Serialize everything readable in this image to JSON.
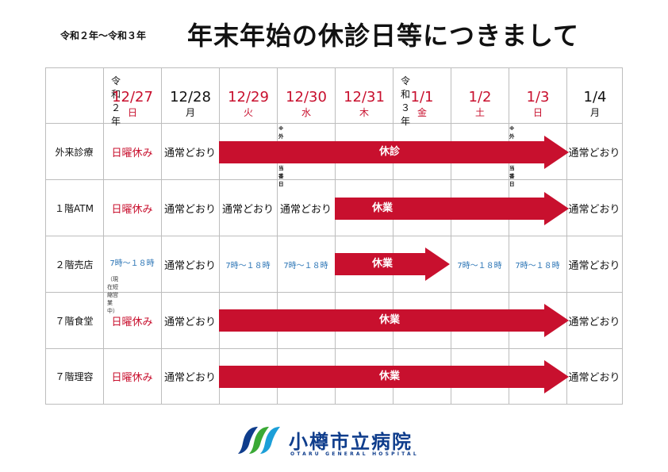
{
  "header": {
    "era_range": "令和２年〜令和３年",
    "title": "年末年始の休診日等につきまして"
  },
  "columns": [
    {
      "era": "令和２年",
      "date": "12/27",
      "dow": "日",
      "red": true
    },
    {
      "era": "",
      "date": "12/28",
      "dow": "月",
      "red": false
    },
    {
      "era": "",
      "date": "12/29",
      "dow": "火",
      "red": true
    },
    {
      "era": "",
      "date": "12/30",
      "dow": "水",
      "red": true
    },
    {
      "era": "",
      "date": "12/31",
      "dow": "木",
      "red": true
    },
    {
      "era": "令和３年",
      "date": "1/1",
      "dow": "金",
      "red": true
    },
    {
      "era": "",
      "date": "1/2",
      "dow": "土",
      "red": true
    },
    {
      "era": "",
      "date": "1/3",
      "dow": "日",
      "red": true
    },
    {
      "era": "",
      "date": "1/4",
      "dow": "月",
      "red": false
    }
  ],
  "notes": {
    "surgery_duty_1230": "※外科救急当番日",
    "surgery_duty_0103": "※外科救急当番日"
  },
  "rows": [
    {
      "label": "外来診療",
      "c1227": "日曜休み",
      "c1228": "通常どおり",
      "closed": "休診",
      "c0104": "通常どおり"
    },
    {
      "label": "１階ATM",
      "c1227": "日曜休み",
      "c1228": "通常どおり",
      "c1229": "通常どおり",
      "c1230": "通常どおり",
      "closed": "休業",
      "c0104": "通常どおり"
    },
    {
      "label": "２階売店",
      "c1227": "7時〜１８時",
      "c1227_sub": "（現在短縮営業中）",
      "c1228": "通常どおり",
      "c1229": "7時〜１８時",
      "c1230": "7時〜１８時",
      "closed": "休業",
      "c0102": "7時〜１８時",
      "c0103": "7時〜１８時",
      "c0104": "通常どおり"
    },
    {
      "label": "７階食堂",
      "c1227": "日曜休み",
      "c1228": "通常どおり",
      "closed": "休業",
      "c0104": "通常どおり"
    },
    {
      "label": "７階理容",
      "c1227": "日曜休み",
      "c1228": "通常どおり",
      "closed": "休業",
      "c0104": "通常どおり"
    }
  ],
  "logo": {
    "name": "小樽市立病院",
    "english": "OTARU GENERAL HOSPITAL"
  },
  "colors": {
    "accent_red": "#c8102e",
    "hours_blue": "#2a74b5",
    "logo_blue": "#0f3d8c",
    "logo_green": "#3aa935"
  }
}
